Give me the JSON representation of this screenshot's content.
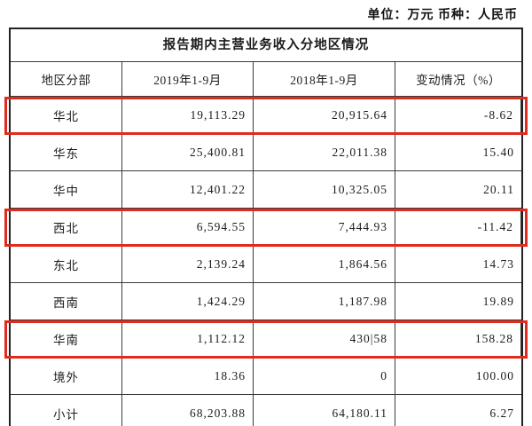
{
  "meta": {
    "unit_label": "单位：万元  币种：人民币"
  },
  "table": {
    "title": "报告期内主营业务收入分地区情况",
    "columns": [
      "地区分部",
      "2019年1-9月",
      "2018年1-9月",
      "变动情况（%）"
    ],
    "rows": [
      {
        "region": "华北",
        "y2019": "19,113.29",
        "y2018": "20,915.64",
        "change": "-8.62",
        "highlighted": true
      },
      {
        "region": "华东",
        "y2019": "25,400.81",
        "y2018": "22,011.38",
        "change": "15.40",
        "highlighted": false
      },
      {
        "region": "华中",
        "y2019": "12,401.22",
        "y2018": "10,325.05",
        "change": "20.11",
        "highlighted": false
      },
      {
        "region": "西北",
        "y2019": "6,594.55",
        "y2018": "7,444.93",
        "change": "-11.42",
        "highlighted": true
      },
      {
        "region": "东北",
        "y2019": "2,139.24",
        "y2018": "1,864.56",
        "change": "14.73",
        "highlighted": false
      },
      {
        "region": "西南",
        "y2019": "1,424.29",
        "y2018": "1,187.98",
        "change": "19.89",
        "highlighted": false
      },
      {
        "region": "华南",
        "y2019": "1,112.12",
        "y2018": "430|58",
        "change": "158.28",
        "highlighted": true
      },
      {
        "region": "境外",
        "y2019": "18.36",
        "y2018": "0",
        "change": "100.00",
        "highlighted": false
      },
      {
        "region": "小计",
        "y2019": "68,203.88",
        "y2018": "64,180.11",
        "change": "6.27",
        "highlighted": false
      }
    ],
    "highlight_color": "#e02b1f"
  }
}
